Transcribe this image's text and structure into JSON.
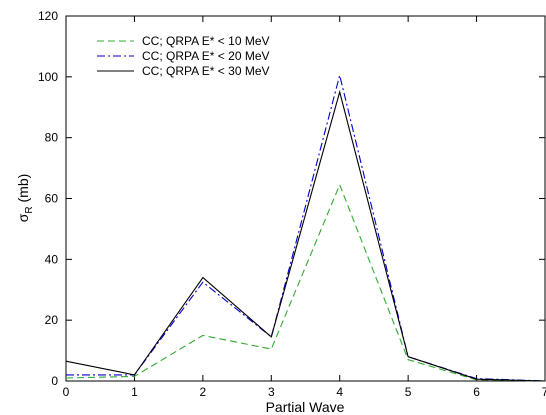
{
  "chart_data": {
    "type": "line",
    "xlabel": "Partial Wave",
    "ylabel_main": "σ",
    "ylabel_sub": "R",
    "ylabel_unit": " (mb)",
    "xlim": [
      0,
      7
    ],
    "ylim": [
      0,
      120
    ],
    "xticks": [
      0,
      1,
      2,
      3,
      4,
      5,
      6,
      7
    ],
    "yticks": [
      0,
      20,
      40,
      60,
      80,
      100,
      120
    ],
    "grid": false,
    "legend_position": "top-left",
    "x": [
      0,
      1,
      2,
      3,
      4,
      5,
      6,
      7
    ],
    "series": [
      {
        "name": "CC; QRPA E* < 10 MeV",
        "color": "#33aa33",
        "dash": "7,4",
        "values": [
          1.0,
          1.5,
          15.0,
          10.5,
          64.5,
          7.0,
          0.4,
          0.0
        ]
      },
      {
        "name": "CC; QRPA E* < 20 MeV",
        "color": "#0000cc",
        "dash": "8,3,2,3",
        "values": [
          2.0,
          2.0,
          32.5,
          14.5,
          100.5,
          8.0,
          0.8,
          0.0
        ]
      },
      {
        "name": "CC; QRPA E* < 30 MeV",
        "color": "#000000",
        "dash": "",
        "values": [
          6.5,
          2.0,
          34.0,
          14.5,
          95.0,
          8.0,
          0.6,
          0.0
        ]
      }
    ]
  }
}
